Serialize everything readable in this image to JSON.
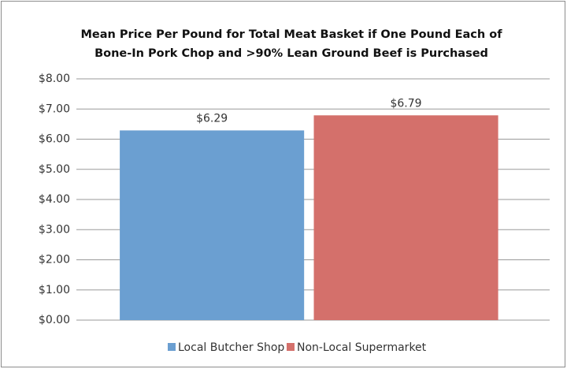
{
  "chart_data": {
    "type": "bar",
    "title": [
      "Mean Price Per Pound for Total Meat Basket if One Pound Each of",
      "Bone-In Pork Chop and >90%  Lean Ground Beef is Purchased"
    ],
    "categories": [
      null
    ],
    "series": [
      {
        "name": "Local Butcher Shop",
        "color": "#6b9fd1",
        "values": [
          6.29
        ],
        "value_labels": [
          "$6.29"
        ]
      },
      {
        "name": "Non-Local Supermarket",
        "color": "#d4706b",
        "values": [
          6.79
        ],
        "value_labels": [
          "$6.79"
        ]
      }
    ],
    "ylim": [
      0,
      8
    ],
    "yticks": [
      {
        "value": 0,
        "label": "$0.00"
      },
      {
        "value": 1,
        "label": "$1.00"
      },
      {
        "value": 2,
        "label": "$2.00"
      },
      {
        "value": 3,
        "label": "$3.00"
      },
      {
        "value": 4,
        "label": "$4.00"
      },
      {
        "value": 5,
        "label": "$5.00"
      },
      {
        "value": 6,
        "label": "$6.00"
      },
      {
        "value": 7,
        "label": "$7.00"
      },
      {
        "value": 8,
        "label": "$8.00"
      }
    ],
    "grid": true,
    "legend": "bottom"
  }
}
